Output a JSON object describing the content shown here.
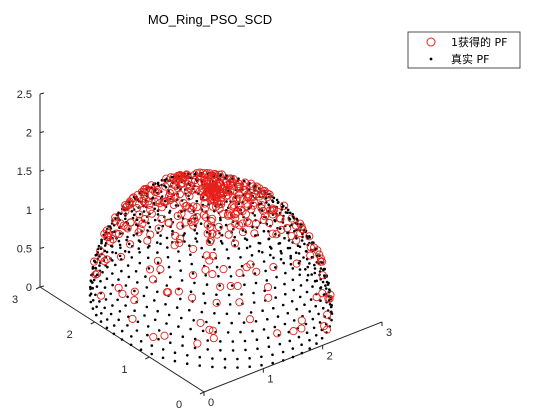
{
  "chart_data": {
    "type": "scatter",
    "title": "MO_Ring_PSO_SCD",
    "projection": "3d",
    "legend_position": "top-right",
    "grid": false,
    "xlim": [
      0,
      3
    ],
    "ylim": [
      0,
      3
    ],
    "zlim": [
      0,
      2.5
    ],
    "x_ticks": [
      "0",
      "1",
      "2",
      "3"
    ],
    "y_ticks": [
      "0",
      "1",
      "2",
      "3"
    ],
    "z_ticks": [
      "0",
      "0.5",
      "1",
      "1.5",
      "2",
      "2.5"
    ],
    "series": [
      {
        "name": "1获得的 PF",
        "marker": "circle-open",
        "color": "#e8201b",
        "description": "obtained Pareto front, ~400 points on the dome surface of radius ~1.5"
      },
      {
        "name": "真实 PF",
        "marker": "dot",
        "color": "#000000",
        "description": "true Pareto front, dome of radius ~1.5 centered near (1.5,1.5,0)"
      }
    ]
  }
}
